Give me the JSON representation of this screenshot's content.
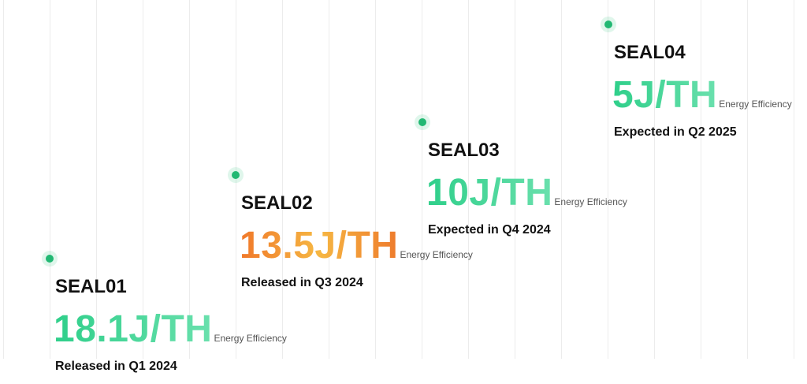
{
  "timeline": {
    "items": [
      {
        "name": "SEAL01",
        "efficiency": "18.1J/TH",
        "efficiency_label": "Energy Efficiency",
        "status": "Released in Q1 2024"
      },
      {
        "name": "SEAL02",
        "efficiency": "13.5J/TH",
        "efficiency_label": "Energy Efficiency",
        "status": "Released in Q3 2024"
      },
      {
        "name": "SEAL03",
        "efficiency": "10J/TH",
        "efficiency_label": "Energy Efficiency",
        "status": "Expected in Q4 2024"
      },
      {
        "name": "SEAL04",
        "efficiency": "5J/TH",
        "efficiency_label": "Energy Efficiency",
        "status": "Expected in Q2 2025"
      }
    ]
  }
}
